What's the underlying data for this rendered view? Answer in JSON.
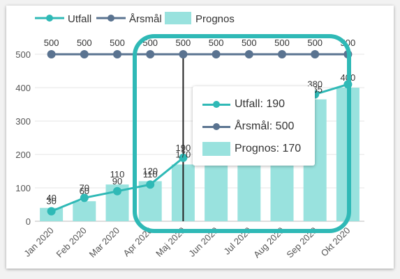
{
  "colors": {
    "actual": "#2fb9b6",
    "goal": "#5a7390",
    "forecast": "#99e2de",
    "highlight": "#2fb9b6",
    "cursor": "#222222",
    "grid": "#e6e6e6",
    "text": "#333333",
    "axis_text": "#555555"
  },
  "legend": {
    "actual": "Utfall",
    "goal": "Årsmål",
    "forecast": "Prognos"
  },
  "tooltip": {
    "actual": "Utfall: 190",
    "goal": "Årsmål: 500",
    "forecast": "Prognos: 170"
  },
  "chart_data": {
    "type": "bar",
    "categories": [
      "Jan 2020",
      "Feb 2020",
      "Mar 2020",
      "Apr 2020",
      "Maj 2020",
      "Jun 2020",
      "Jul 2020",
      "Aug 2020",
      "Sep 2020",
      "Okt 2020"
    ],
    "ylim": [
      0,
      500
    ],
    "yticks": [
      0,
      100,
      200,
      300,
      400,
      500
    ],
    "grid": true,
    "legend_position": "top-left",
    "hovered_category": "Maj 2020",
    "series": [
      {
        "key": "forecast",
        "name": "Prognos",
        "type": "bar",
        "values": [
          40,
          60,
          110,
          120,
          170,
          200,
          220,
          250,
          365,
          400
        ],
        "labels": [
          "40",
          "60",
          "110",
          "120",
          "170",
          "",
          "",
          "",
          "365",
          "400"
        ]
      },
      {
        "key": "actual",
        "name": "Utfall",
        "type": "line",
        "values": [
          30,
          70,
          90,
          110,
          190,
          null,
          null,
          null,
          380,
          410
        ],
        "labels": [
          "30",
          "70",
          "90",
          "110",
          "190",
          "",
          "",
          "",
          "380",
          ""
        ]
      },
      {
        "key": "goal",
        "name": "Årsmål",
        "type": "line",
        "values": [
          500,
          500,
          500,
          500,
          500,
          500,
          500,
          500,
          500,
          500
        ],
        "labels": [
          "500",
          "500",
          "500",
          "500",
          "500",
          "500",
          "500",
          "500",
          "500",
          "500"
        ]
      }
    ]
  }
}
